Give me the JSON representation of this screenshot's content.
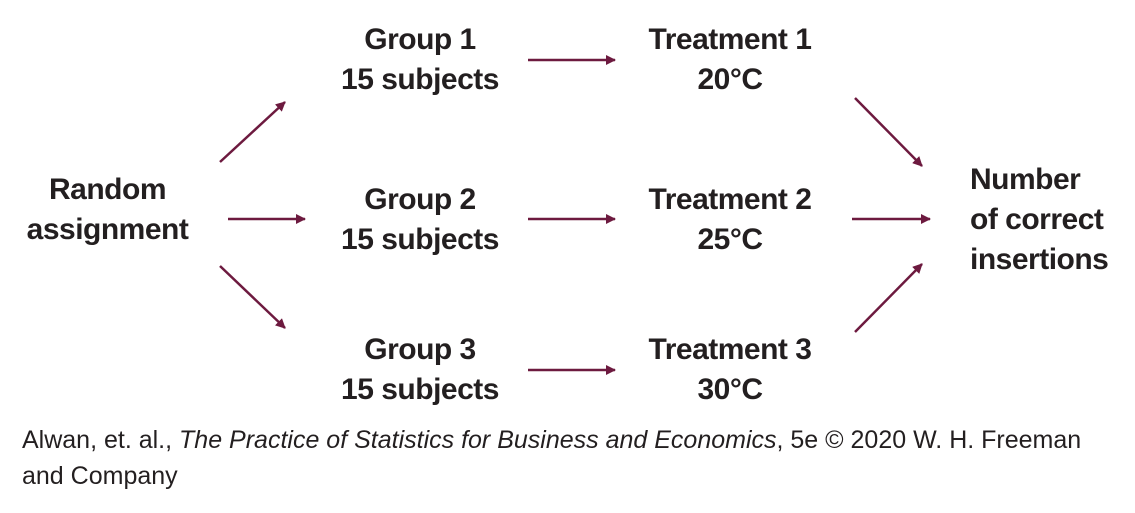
{
  "random": [
    "Random",
    "assignment"
  ],
  "groups": [
    {
      "name": "Group 1",
      "size": "15 subjects"
    },
    {
      "name": "Group 2",
      "size": "15 subjects"
    },
    {
      "name": "Group 3",
      "size": "15 subjects"
    }
  ],
  "treatments": [
    {
      "name": "Treatment 1",
      "temp": "20°C"
    },
    {
      "name": "Treatment 2",
      "temp": "25°C"
    },
    {
      "name": "Treatment 3",
      "temp": "30°C"
    }
  ],
  "outcome": [
    "Number",
    "of correct",
    "insertions"
  ],
  "caption": {
    "authors": "Alwan, et. al., ",
    "book": "The Practice of Statistics for Business and Economics",
    "rest": ", 5e © 2020 W. H. Freeman and Company"
  },
  "colors": {
    "arrow": "#6d1a3f",
    "text": "#231f20"
  }
}
